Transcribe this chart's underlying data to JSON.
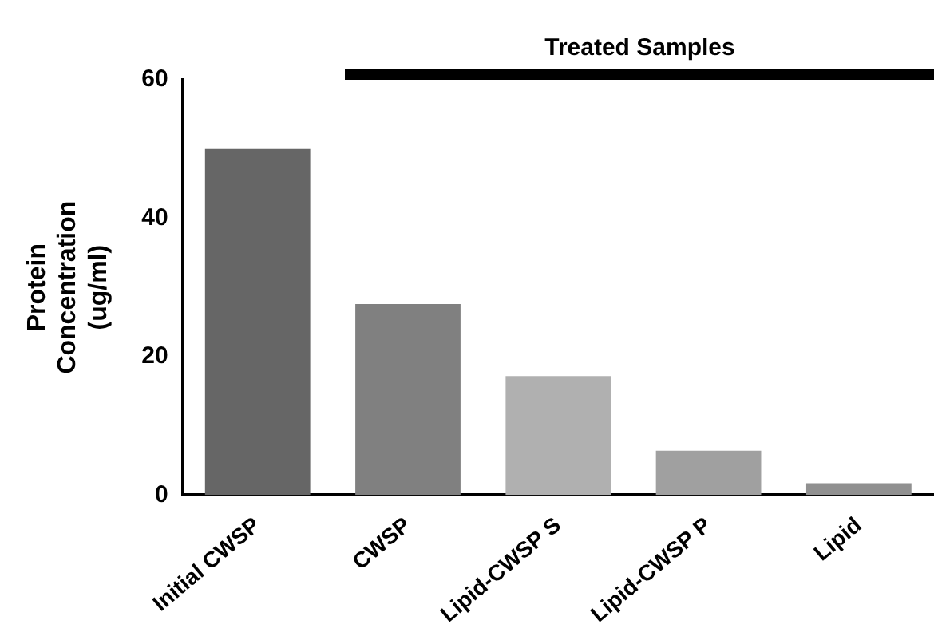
{
  "chart_data": {
    "type": "bar",
    "ylabel": "Protein Concentration (ug/ml)",
    "categories": [
      "Initial CWSP",
      "CWSP",
      "Lipid-CWSP S",
      "Lipid-CWSP P",
      "Lipid"
    ],
    "values": [
      50,
      27.6,
      17.2,
      6.4,
      1.7
    ],
    "colors": [
      "#666666",
      "#808080",
      "#b0b0b0",
      "#a0a0a0",
      "#909090"
    ],
    "ylim": [
      0,
      60
    ],
    "yticks": [
      0,
      20,
      40,
      60
    ],
    "grid": false,
    "legend": false,
    "annotations": [
      "Treated Samples"
    ]
  }
}
